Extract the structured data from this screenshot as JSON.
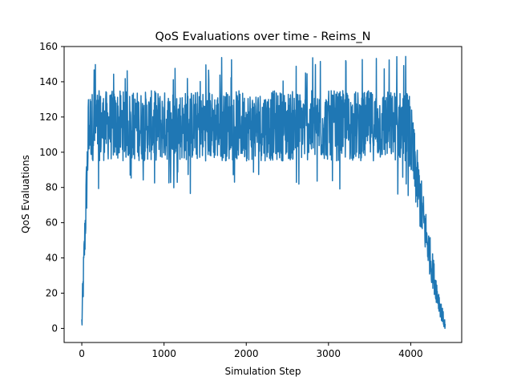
{
  "chart_data": {
    "type": "line",
    "title": "QoS Evaluations over time - Reims_N",
    "xlabel": "Simulation Step",
    "ylabel": "QoS Evaluations",
    "xlim": [
      -215,
      4620
    ],
    "ylim": [
      -8,
      160
    ],
    "xticks": [
      0,
      1000,
      2000,
      3000,
      4000
    ],
    "yticks": [
      0,
      20,
      40,
      60,
      80,
      100,
      120,
      140,
      160
    ],
    "grid": false,
    "legend": "none",
    "color": "#1f77b4",
    "series": [
      {
        "x_start": 0,
        "x_end": 4420,
        "description_points": [
          [
            0,
            2
          ],
          [
            10,
            12
          ],
          [
            20,
            30
          ],
          [
            30,
            50
          ],
          [
            40,
            70
          ],
          [
            50,
            82
          ],
          [
            60,
            100
          ],
          [
            80,
            118
          ],
          [
            200,
            155
          ],
          [
            400,
            150
          ],
          [
            1000,
            115
          ],
          [
            1500,
            118
          ],
          [
            2000,
            112
          ],
          [
            2500,
            120
          ],
          [
            3000,
            115
          ],
          [
            3500,
            118
          ],
          [
            3950,
            120
          ],
          [
            4000,
            110
          ],
          [
            4050,
            80
          ],
          [
            4100,
            60
          ],
          [
            4150,
            45
          ],
          [
            4200,
            35
          ],
          [
            4250,
            25
          ],
          [
            4300,
            15
          ],
          [
            4350,
            8
          ],
          [
            4420,
            3
          ]
        ],
        "envelope": {
          "plateau_low": 80,
          "plateau_high": 155,
          "plateau_mean": 115
        }
      }
    ]
  }
}
